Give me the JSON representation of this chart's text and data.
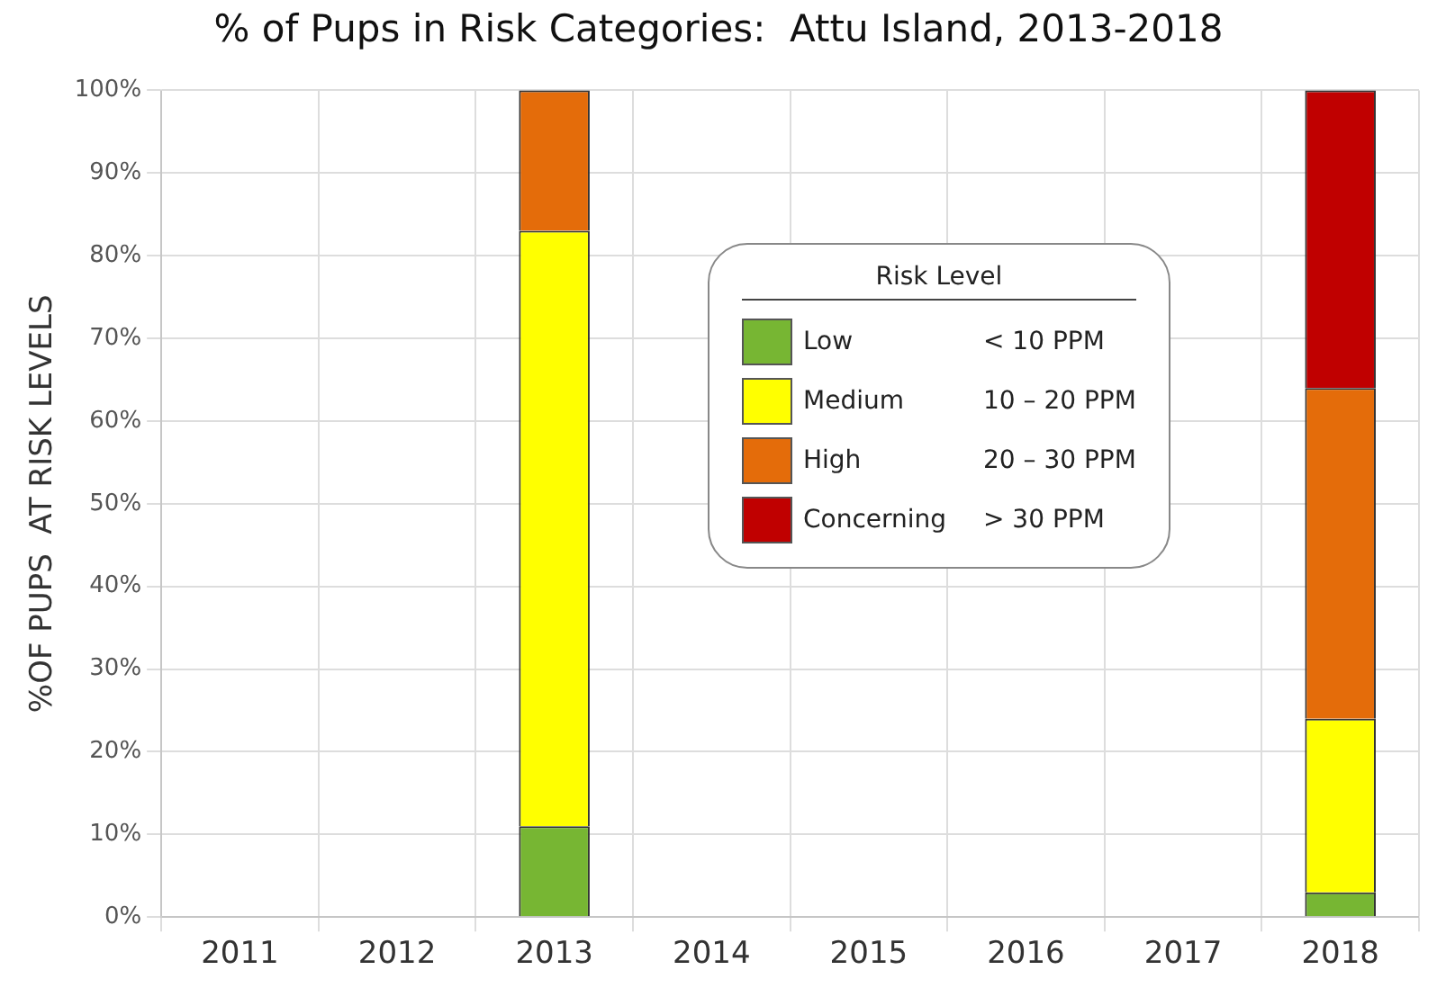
{
  "chart_data": {
    "type": "bar",
    "title": "% of Pups in Risk Categories:  Attu Island, 2013-2018",
    "ylabel": "%OF PUPS  AT RISK LEVELS",
    "legend_title": "Risk Level",
    "categories": [
      "2011",
      "2012",
      "2013",
      "2014",
      "2015",
      "2016",
      "2017",
      "2018"
    ],
    "stacked": true,
    "series": [
      {
        "name": "Low",
        "color": "#77b633",
        "values": [
          null,
          null,
          11,
          null,
          null,
          null,
          null,
          3
        ]
      },
      {
        "name": "Medium",
        "color": "#ffff00",
        "values": [
          null,
          null,
          72,
          null,
          null,
          null,
          null,
          21
        ]
      },
      {
        "name": "High",
        "color": "#e46c0a",
        "values": [
          null,
          null,
          17,
          null,
          null,
          null,
          null,
          40
        ]
      },
      {
        "name": "Concerning",
        "color": "#c00000",
        "values": [
          null,
          null,
          0,
          null,
          null,
          null,
          null,
          36
        ]
      }
    ],
    "annotations": [
      "< 10 PPM",
      "10 – 20 PPM",
      "20 – 30 PPM",
      "> 30 PPM"
    ],
    "ylim": [
      0,
      100
    ],
    "yticks": [
      {
        "value": 0,
        "label": "0%"
      },
      {
        "value": 10,
        "label": "10%"
      },
      {
        "value": 20,
        "label": "20%"
      },
      {
        "value": 30,
        "label": "30%"
      },
      {
        "value": 40,
        "label": "40%"
      },
      {
        "value": 50,
        "label": "50%"
      },
      {
        "value": 60,
        "label": "60%"
      },
      {
        "value": 70,
        "label": "70%"
      },
      {
        "value": 80,
        "label": "80%"
      },
      {
        "value": 90,
        "label": "90%"
      },
      {
        "value": 100,
        "label": "100%"
      }
    ],
    "grid": true,
    "legend": "center"
  }
}
